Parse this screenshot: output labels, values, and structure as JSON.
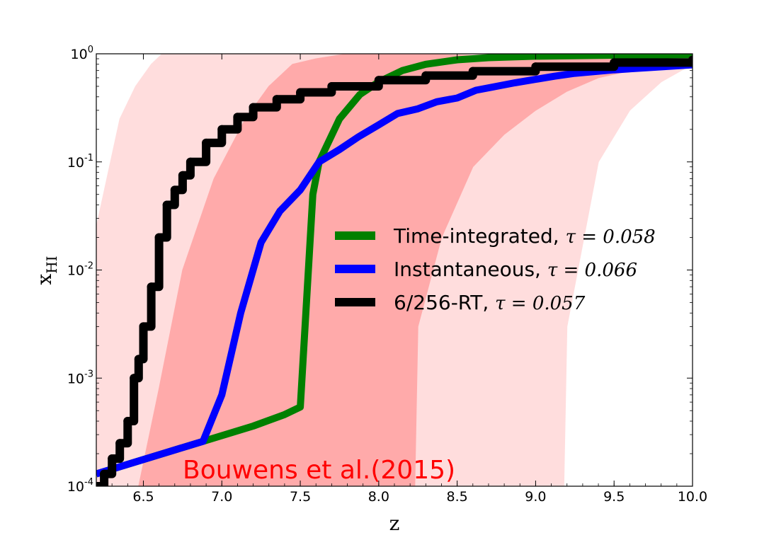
{
  "chart_data": {
    "type": "line",
    "xlabel": "z",
    "ylabel": "x",
    "ylabel_sub": "HI",
    "xlim": [
      6.2,
      10.0
    ],
    "ylim": [
      0.0001,
      1
    ],
    "yscale": "log",
    "grid": false,
    "legend_position": "center-right",
    "x_ticks": [
      {
        "value": 6.5,
        "label": "6.5"
      },
      {
        "value": 7.0,
        "label": "7.0"
      },
      {
        "value": 7.5,
        "label": "7.5"
      },
      {
        "value": 8.0,
        "label": "8.0"
      },
      {
        "value": 8.5,
        "label": "8.5"
      },
      {
        "value": 9.0,
        "label": "9.0"
      },
      {
        "value": 9.5,
        "label": "9.5"
      },
      {
        "value": 10.0,
        "label": "10.0"
      }
    ],
    "y_ticks": [
      {
        "value": 1,
        "base": "10",
        "exp": "0"
      },
      {
        "value": 0.1,
        "base": "10",
        "exp": "-1"
      },
      {
        "value": 0.01,
        "base": "10",
        "exp": "-2"
      },
      {
        "value": 0.001,
        "base": "10",
        "exp": "-3"
      },
      {
        "value": 0.0001,
        "base": "10",
        "exp": "-4"
      }
    ],
    "series": [
      {
        "name": "Time-integrated,",
        "tau_label": "τ = 0.058",
        "color": "#008000",
        "x": [
          6.2,
          6.88,
          7.2,
          7.4,
          7.5,
          7.58,
          7.62,
          7.75,
          7.88,
          8.0,
          8.15,
          8.3,
          8.5,
          8.7,
          9.0,
          9.5,
          10.0
        ],
        "y": [
          0.00013,
          0.00026,
          0.00036,
          0.00046,
          0.00054,
          0.05,
          0.1,
          0.25,
          0.42,
          0.55,
          0.7,
          0.8,
          0.88,
          0.92,
          0.95,
          0.97,
          0.98
        ]
      },
      {
        "name": "Instantaneous,",
        "tau_label": "τ = 0.066",
        "color": "#0000ff",
        "x": [
          6.2,
          6.88,
          7.0,
          7.12,
          7.25,
          7.37,
          7.5,
          7.62,
          7.75,
          7.87,
          8.0,
          8.12,
          8.25,
          8.37,
          8.5,
          8.62,
          8.75,
          8.87,
          9.0,
          9.12,
          9.25,
          9.5,
          9.75,
          10.0
        ],
        "y": [
          0.00013,
          0.00026,
          0.0007,
          0.004,
          0.018,
          0.035,
          0.055,
          0.1,
          0.13,
          0.17,
          0.22,
          0.28,
          0.31,
          0.36,
          0.39,
          0.46,
          0.5,
          0.54,
          0.58,
          0.62,
          0.66,
          0.71,
          0.75,
          0.79
        ]
      },
      {
        "name": "6/256-RT,",
        "tau_label": "τ = 0.057",
        "color": "#000000",
        "x": [
          6.2,
          6.25,
          6.3,
          6.35,
          6.4,
          6.44,
          6.47,
          6.5,
          6.55,
          6.6,
          6.65,
          6.7,
          6.75,
          6.8,
          6.9,
          7.0,
          7.1,
          7.2,
          7.35,
          7.5,
          7.7,
          8.0,
          8.3,
          8.6,
          9.0,
          9.5,
          10.0
        ],
        "y": [
          0.0001,
          0.00013,
          0.00018,
          0.00025,
          0.0004,
          0.001,
          0.0015,
          0.003,
          0.007,
          0.02,
          0.04,
          0.055,
          0.075,
          0.1,
          0.15,
          0.2,
          0.26,
          0.32,
          0.38,
          0.44,
          0.5,
          0.57,
          0.63,
          0.69,
          0.76,
          0.83,
          0.88
        ]
      }
    ],
    "bands": [
      {
        "role": "outer",
        "color": "#ffdddd",
        "upper_x": [
          6.2,
          6.35,
          6.45,
          6.55,
          6.62,
          10.0
        ],
        "upper_y": [
          0.025,
          0.25,
          0.5,
          0.8,
          1.0,
          1.0
        ],
        "lower_x": [
          6.2,
          6.47,
          7.0,
          7.5,
          8.0,
          8.5,
          9.0,
          9.18,
          9.2,
          9.4,
          9.6,
          9.8,
          10.0
        ],
        "lower_y": [
          0.0001,
          0.0001,
          0.0001,
          0.0001,
          0.0001,
          0.0001,
          0.0001,
          0.0001,
          0.003,
          0.1,
          0.3,
          0.55,
          0.8
        ]
      },
      {
        "role": "inner",
        "color": "#ffaaaa",
        "upper_x": [
          6.47,
          6.6,
          6.75,
          6.95,
          7.15,
          7.3,
          7.45,
          7.6,
          7.8,
          8.2
        ],
        "upper_y": [
          0.0001,
          0.0008,
          0.01,
          0.07,
          0.25,
          0.5,
          0.8,
          0.9,
          1.0,
          1.0
        ],
        "lower_x": [
          6.47,
          8.23,
          8.25,
          8.4,
          8.6,
          8.8,
          9.0,
          9.2,
          9.4,
          9.7,
          10.0
        ],
        "lower_y": [
          0.0001,
          0.0001,
          0.003,
          0.02,
          0.09,
          0.18,
          0.3,
          0.45,
          0.6,
          0.75,
          0.85
        ]
      }
    ],
    "annotation": {
      "text": "Bouwens et al.(2015)",
      "color": "#ff0000"
    }
  }
}
